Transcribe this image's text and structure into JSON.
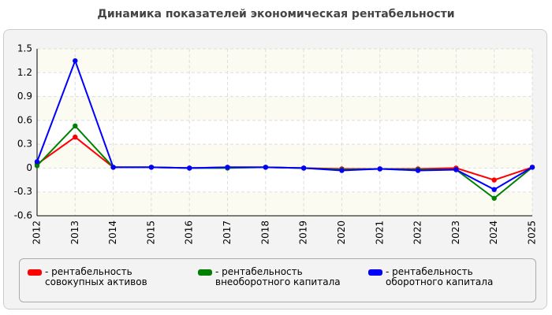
{
  "chart_data": {
    "type": "line",
    "title": "Динамика показателей экономическая рентабельности",
    "categories": [
      "2012",
      "2013",
      "2014",
      "2015",
      "2016",
      "2017",
      "2018",
      "2019",
      "2020",
      "2021",
      "2022",
      "2023",
      "2024",
      "2025"
    ],
    "series": [
      {
        "name": "рентабельность совокупных активов",
        "color": "#ff0000",
        "values": [
          0.05,
          0.39,
          0.01,
          0.01,
          0.0,
          0.01,
          0.01,
          0.0,
          -0.01,
          -0.01,
          -0.01,
          0.0,
          -0.15,
          0.01
        ]
      },
      {
        "name": "рентабельность внеоборотного капитала",
        "color": "#008000",
        "values": [
          0.03,
          0.53,
          0.01,
          0.01,
          0.0,
          0.0,
          0.01,
          0.0,
          -0.02,
          -0.01,
          -0.02,
          -0.02,
          -0.38,
          0.01
        ]
      },
      {
        "name": "рентабельность оборотного капитала",
        "color": "#0000ff",
        "values": [
          0.08,
          1.35,
          0.01,
          0.01,
          0.0,
          0.01,
          0.01,
          0.0,
          -0.03,
          -0.01,
          -0.03,
          -0.02,
          -0.27,
          0.01
        ]
      }
    ],
    "ylim": [
      -0.6,
      1.5
    ],
    "yticks": [
      1.5,
      1.2,
      0.9,
      0.6,
      0.3,
      0,
      -0.3,
      -0.6
    ],
    "grid": true
  }
}
